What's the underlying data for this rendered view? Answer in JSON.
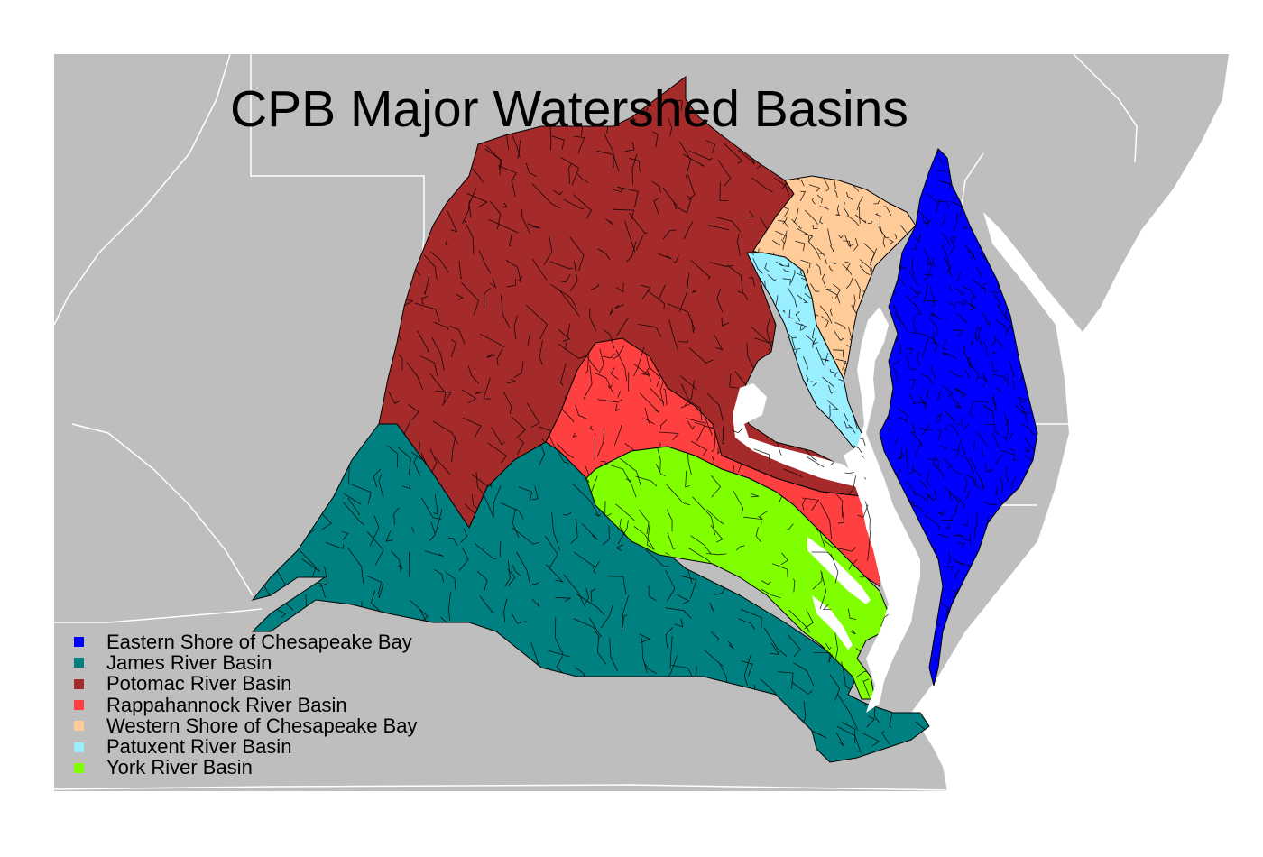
{
  "title": "CPB Major Watershed Basins",
  "colors": {
    "background_land": "#bebebe",
    "state_border": "#ffffff",
    "water": "#ffffff"
  },
  "legend": [
    {
      "label": "Eastern Shore of Chesapeake Bay",
      "color": "#0000ff"
    },
    {
      "label": "James River Basin",
      "color": "#008080"
    },
    {
      "label": "Potomac River Basin",
      "color": "#a52a2a"
    },
    {
      "label": "Rappahannock River Basin",
      "color": "#ff4040"
    },
    {
      "label": "Western Shore of Chesapeake Bay",
      "color": "#ffcc99"
    },
    {
      "label": "Patuxent River Basin",
      "color": "#99eeff"
    },
    {
      "label": "York River Basin",
      "color": "#80ff00"
    }
  ]
}
